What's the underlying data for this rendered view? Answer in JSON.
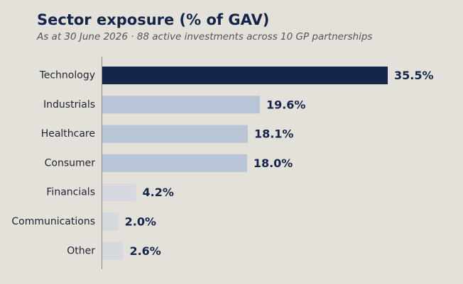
{
  "header": {
    "title": "Sector exposure (% of GAV)",
    "subtitle": "As at 30 June 2026 · 88 active investments across 10 GP partnerships"
  },
  "chart_data": {
    "type": "bar",
    "orientation": "horizontal",
    "title": "Sector exposure (% of GAV)",
    "subtitle": "As at 30 June 2026 · 88 active investments across 10 GP partnerships",
    "categories": [
      "Technology",
      "Industrials",
      "Healthcare",
      "Consumer",
      "Financials",
      "Communications",
      "Other"
    ],
    "values": [
      35.5,
      19.6,
      18.1,
      18.0,
      4.2,
      2.0,
      2.6
    ],
    "value_labels": [
      "35.5%",
      "19.6%",
      "18.1%",
      "18.0%",
      "4.2%",
      "2.0%",
      "2.6%"
    ],
    "bar_colors": [
      "#13264a",
      "#b8c5d6",
      "#b8c5d6",
      "#b8c5d6",
      "#d5d9dd",
      "#d5d9dd",
      "#d5d9dd"
    ],
    "xlim": [
      0,
      35.5
    ],
    "grid": false,
    "legend": "none"
  },
  "colors": {
    "background": "#e4e0da",
    "title": "#13264a",
    "subtitle": "#555555",
    "axis": "#888888"
  }
}
